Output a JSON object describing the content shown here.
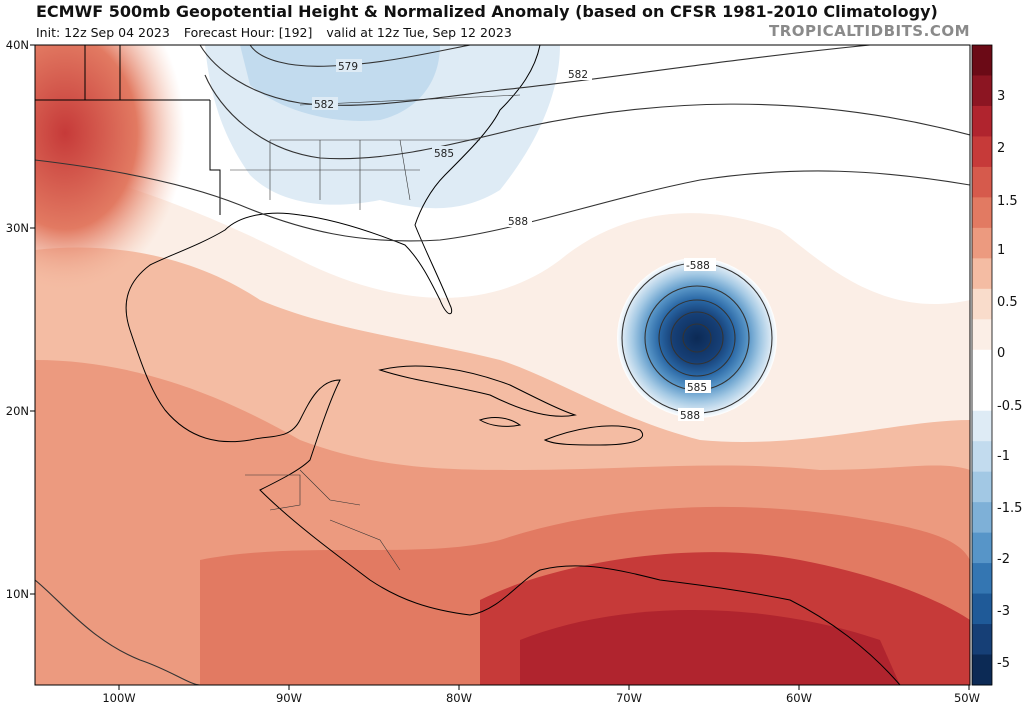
{
  "header": {
    "title": "ECMWF 500mb Geopotential Height & Normalized Anomaly (based on CFSR 1981-2010 Climatology)",
    "init": "Init: 12z Sep 04 2023",
    "forecast_hour": "Forecast Hour: [192]",
    "valid": "valid at 12z Tue, Sep 12 2023",
    "brand": "TROPICALTIDBITS.COM"
  },
  "axes": {
    "lat_labels": [
      "40N",
      "30N",
      "20N",
      "10N"
    ],
    "lon_labels": [
      "100W",
      "90W",
      "80W",
      "70W",
      "60W",
      "50W"
    ]
  },
  "colorbar": {
    "labels": [
      "3",
      "2",
      "1.5",
      "1",
      "0.5",
      "0",
      "-0.5",
      "-1",
      "-1.5",
      "-2",
      "-3",
      "-5"
    ],
    "colors": [
      "#6b0a16",
      "#8c1522",
      "#b0242e",
      "#c63a39",
      "#d65a4c",
      "#e27a62",
      "#ec9a7f",
      "#f4bca3",
      "#f9dccb",
      "#fbeee6",
      "#ffffff",
      "#ffffff",
      "#deebf5",
      "#c2dbee",
      "#a2c8e4",
      "#7eb0d7",
      "#5795c8",
      "#3476b2",
      "#1f5a98",
      "#163f76",
      "#0c2a55"
    ]
  },
  "contours": {
    "labels": [
      "579",
      "582",
      "582",
      "585",
      "588",
      "-588",
      "585",
      "588"
    ]
  }
}
